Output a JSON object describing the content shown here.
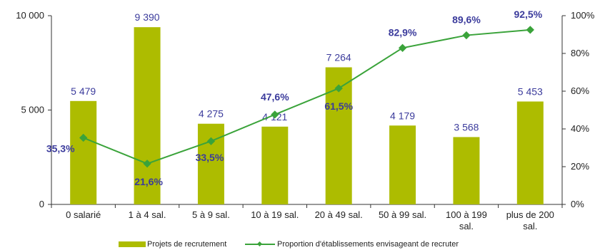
{
  "chart_data": {
    "type": "bar",
    "categories": [
      "0 salarié",
      "1 à 4 sal.",
      "5 à 9 sal.",
      "10 à 19 sal.",
      "20 à 49 sal.",
      "50 à 99 sal.",
      "100 à 199 sal.",
      "plus de 200 sal."
    ],
    "series": [
      {
        "name": "Projets de recrutement",
        "type": "bar",
        "axis": "left",
        "color": "#adbc00",
        "values": [
          5479,
          9390,
          4275,
          4121,
          7264,
          4179,
          3568,
          5453
        ],
        "labels": [
          "5 479",
          "9 390",
          "4 275",
          "4 121",
          "7 264",
          "4 179",
          "3 568",
          "5 453"
        ]
      },
      {
        "name": "Proportion d'établissements envisageant de recruter",
        "type": "line",
        "axis": "right",
        "color": "#3aa33a",
        "values": [
          35.3,
          21.6,
          33.5,
          47.6,
          61.5,
          82.9,
          89.6,
          92.5
        ],
        "labels": [
          "35,3%",
          "21,6%",
          "33,5%",
          "47,6%",
          "61,5%",
          "82,9%",
          "89,6%",
          "92,5%"
        ]
      }
    ],
    "y_left": {
      "range": [
        0,
        10000
      ],
      "ticks": [
        0,
        5000,
        10000
      ],
      "tick_labels": [
        "0",
        "5 000",
        "10 000"
      ]
    },
    "y_right": {
      "range": [
        0,
        100
      ],
      "ticks": [
        0,
        20,
        40,
        60,
        80,
        100
      ],
      "tick_labels": [
        "0%",
        "20%",
        "40%",
        "60%",
        "80%",
        "100%"
      ]
    },
    "grid": false,
    "legend": "bottom"
  }
}
